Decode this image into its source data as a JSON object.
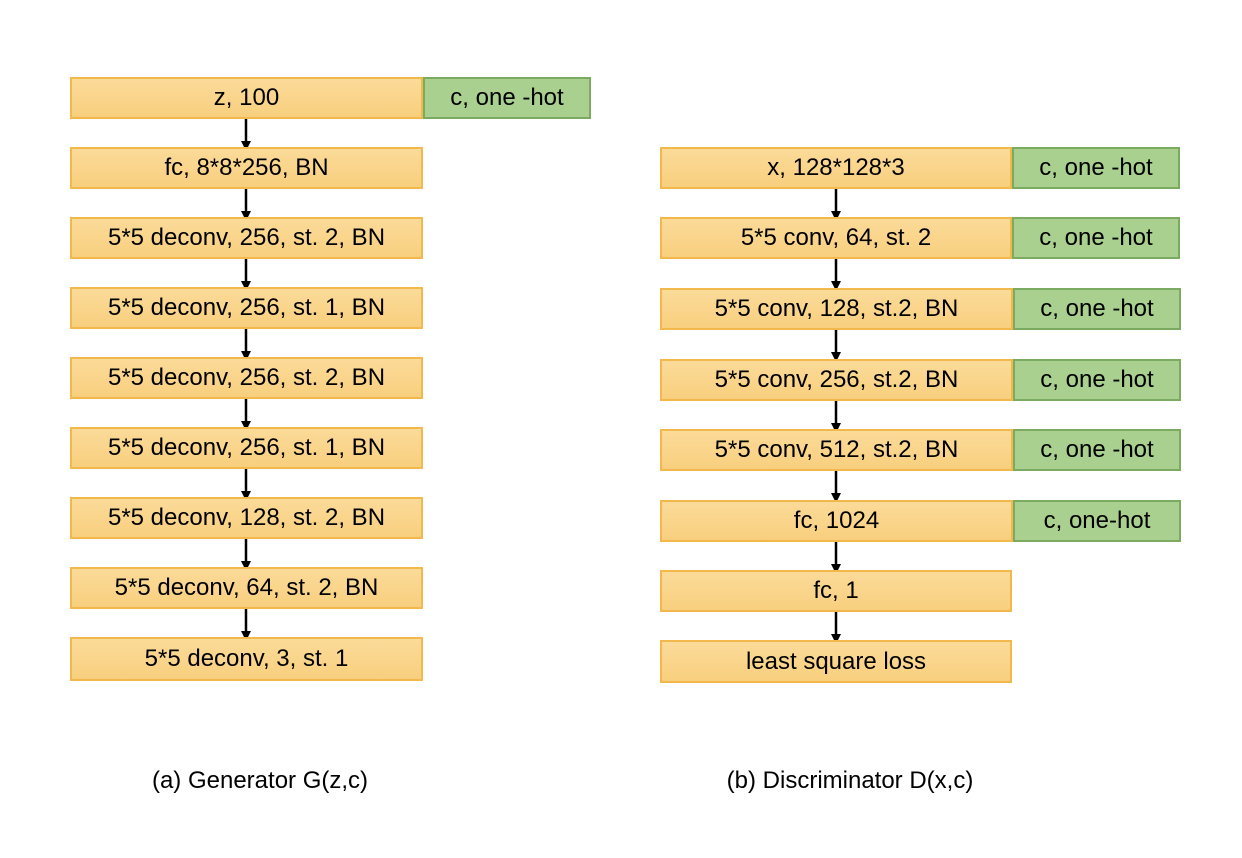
{
  "generator": {
    "input": "z, 100",
    "condition": "c, one -hot",
    "layers": [
      "fc, 8*8*256, BN",
      "5*5 deconv, 256, st. 2, BN",
      "5*5 deconv, 256, st. 1, BN",
      "5*5 deconv, 256, st. 2, BN",
      "5*5 deconv, 256, st. 1, BN",
      "5*5 deconv, 128, st. 2, BN",
      "5*5 deconv, 64, st. 2, BN",
      "5*5 deconv, 3, st. 1"
    ],
    "caption": "(a) Generator G(z,c)"
  },
  "discriminator": {
    "input": "x, 128*128*3",
    "layers": [
      "5*5 conv,  64, st. 2",
      "5*5 conv, 128, st.2, BN",
      "5*5 conv, 256, st.2, BN",
      "5*5 conv, 512, st.2, BN",
      "fc, 1024",
      "fc, 1",
      "least square loss"
    ],
    "conditions": [
      "c, one -hot",
      "c, one -hot",
      "c, one -hot",
      "c, one -hot",
      "c, one -hot",
      "c, one-hot"
    ],
    "caption": "(b) Discriminator D(x,c)"
  },
  "colors": {
    "layer_fill": "#fad58a",
    "layer_border": "#f2b84b",
    "condition_fill": "#a9d08e",
    "condition_border": "#7aab60",
    "arrow": "#000000"
  }
}
